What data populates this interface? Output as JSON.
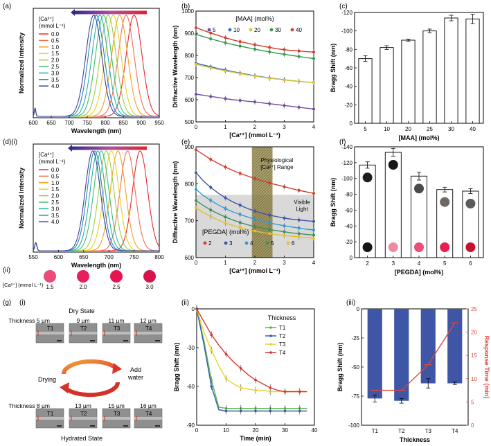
{
  "colors": {
    "ca_series": [
      "#e8282f",
      "#f06d55",
      "#f2a01f",
      "#e6d21f",
      "#9dcc3c",
      "#3fbf70",
      "#25b0a8",
      "#2a7fc4",
      "#3a3f96"
    ],
    "maa_series": [
      "#6e4e9e",
      "#2f6fb7",
      "#d9c43a",
      "#2f9c49",
      "#d63a2a"
    ],
    "pegda_series": [
      "#d63a2a",
      "#3d56a6",
      "#2b9bd6",
      "#3f8f5f",
      "#e2c12e"
    ],
    "thick_series": [
      "#55b74a",
      "#3a5aa8",
      "#ecd22a",
      "#d6342a"
    ],
    "bar_fill": "#3f56a6",
    "rt_line": "#e0463a",
    "band": "#8a7d3c",
    "visible": "#d9d9d9"
  },
  "panel_labels": {
    "a": "(a)",
    "b": "(b)",
    "c": "(c)",
    "d": "(d)(i)",
    "e": "(e)",
    "f": "(f)",
    "dii": "(ii)",
    "g": "(g)",
    "gi": "(i)",
    "gii": "(ii)",
    "giii": "(iii)"
  },
  "chart_data": [
    {
      "id": "a",
      "type": "line",
      "xlabel": "Wavelength (nm)",
      "ylabel": "Normalized Intensity",
      "xlim": [
        600,
        950
      ],
      "xticks": [
        "600",
        "650",
        "700",
        "750",
        "800",
        "850",
        "900",
        "950"
      ],
      "legend_title": [
        "[Ca²⁺]",
        "(mmol L⁻¹)"
      ],
      "series": [
        {
          "name": "0.0",
          "peak": 880
        },
        {
          "name": "0.5",
          "peak": 858
        },
        {
          "name": "1.0",
          "peak": 840
        },
        {
          "name": "1.5",
          "peak": 822
        },
        {
          "name": "2.0",
          "peak": 808
        },
        {
          "name": "2.5",
          "peak": 795
        },
        {
          "name": "3.0",
          "peak": 785
        },
        {
          "name": "3.5",
          "peak": 775
        },
        {
          "name": "4.0",
          "peak": 768
        }
      ]
    },
    {
      "id": "b",
      "type": "scatter",
      "xlabel": "[Ca²⁺] (mmol L⁻¹)",
      "ylabel": "Diffractive Wavelength (nm)",
      "xlim": [
        0,
        4
      ],
      "ylim": [
        500,
        1000
      ],
      "xticks": [
        "0",
        "1",
        "2",
        "3",
        "4"
      ],
      "yticks": [
        "500",
        "600",
        "700",
        "800",
        "900",
        "1000"
      ],
      "legend_title": "[MAA] (mol%)",
      "x": [
        0,
        0.25,
        0.5,
        0.75,
        1,
        1.25,
        1.5,
        1.75,
        2,
        2.25,
        2.5,
        2.75,
        3,
        3.25,
        3.5,
        3.75,
        4
      ],
      "series": [
        {
          "name": "5",
          "values": [
            625,
            620,
            615,
            610,
            605,
            600,
            597,
            593,
            590,
            586,
            582,
            578,
            574,
            570,
            566,
            562,
            558
          ]
        },
        {
          "name": "10",
          "values": [
            765,
            757,
            749,
            741,
            734,
            727,
            720,
            714,
            708,
            703,
            698,
            694,
            690,
            686,
            683,
            680,
            678
          ]
        },
        {
          "name": "20",
          "values": [
            760,
            752,
            744,
            737,
            730,
            724,
            718,
            712,
            707,
            702,
            697,
            693,
            689,
            686,
            683,
            680,
            678
          ]
        },
        {
          "name": "30",
          "values": [
            895,
            885,
            875,
            866,
            857,
            849,
            842,
            835,
            828,
            822,
            816,
            810,
            805,
            800,
            795,
            790,
            786
          ]
        },
        {
          "name": "40",
          "values": [
            925,
            913,
            901,
            890,
            880,
            870,
            862,
            855,
            848,
            842,
            836,
            830,
            826,
            822,
            820,
            817,
            815
          ]
        }
      ]
    },
    {
      "id": "c",
      "type": "bar",
      "xlabel": "[MAA] (mol%)",
      "ylabel": "Bragg Shift (nm)",
      "categories": [
        "5",
        "10",
        "20",
        "25",
        "30",
        "40"
      ],
      "values": [
        -70,
        -82,
        -90,
        -100,
        -114,
        -113
      ],
      "errors": [
        3,
        2,
        1,
        2,
        3,
        5
      ],
      "ylim": [
        0,
        -120
      ],
      "yticks": [
        "0",
        "-20",
        "-40",
        "-60",
        "-80",
        "-100",
        "-120"
      ]
    },
    {
      "id": "d",
      "type": "line",
      "xlabel": "Wavelength (nm)",
      "ylabel": "Normalized Intensity",
      "xlim": [
        550,
        800
      ],
      "xticks": [
        "550",
        "600",
        "650",
        "700",
        "750",
        "800"
      ],
      "legend_title": [
        "[Ca²⁺]",
        "(mmol L⁻¹)"
      ],
      "series": [
        {
          "name": "0.0",
          "peak": 762
        },
        {
          "name": "0.5",
          "peak": 737
        },
        {
          "name": "1.0",
          "peak": 718
        },
        {
          "name": "1.5",
          "peak": 705
        },
        {
          "name": "2.0",
          "peak": 695
        },
        {
          "name": "2.5",
          "peak": 685
        },
        {
          "name": "3.0",
          "peak": 678
        },
        {
          "name": "3.5",
          "peak": 672
        },
        {
          "name": "4.0",
          "peak": 668
        }
      ]
    },
    {
      "id": "e",
      "type": "scatter",
      "xlabel": "[Ca²⁺] (mmol L⁻¹)",
      "ylabel": "Diffractive Wavelength (nm)",
      "xlim": [
        0,
        4
      ],
      "ylim": [
        600,
        900
      ],
      "xticks": [
        "0",
        "1",
        "2",
        "3",
        "4"
      ],
      "yticks": [
        "600",
        "700",
        "800",
        "900"
      ],
      "legend_title": "[PEGDA] (mol%)",
      "annotations": {
        "band_label": [
          "Physiological",
          "[Ca²⁺] Range"
        ],
        "visible_label": [
          "Visible",
          "Light"
        ]
      },
      "band_x": [
        1.9,
        2.6
      ],
      "visible_y": [
        600,
        770
      ],
      "x": [
        0,
        0.25,
        0.5,
        0.75,
        1,
        1.25,
        1.5,
        1.75,
        2,
        2.25,
        2.5,
        2.75,
        3,
        3.25,
        3.5,
        3.75,
        4
      ],
      "series": [
        {
          "name": "2",
          "values": [
            892,
            879,
            866,
            855,
            845,
            836,
            828,
            821,
            814,
            808,
            802,
            797,
            792,
            787,
            782,
            778,
            774
          ]
        },
        {
          "name": "3",
          "values": [
            830,
            808,
            790,
            775,
            762,
            751,
            742,
            733,
            726,
            720,
            715,
            711,
            707,
            704,
            702,
            700,
            698
          ]
        },
        {
          "name": "4",
          "values": [
            785,
            768,
            755,
            743,
            733,
            724,
            717,
            710,
            704,
            699,
            694,
            690,
            686,
            683,
            680,
            677,
            675
          ]
        },
        {
          "name": "5",
          "values": [
            755,
            741,
            729,
            719,
            710,
            702,
            695,
            689,
            684,
            680,
            676,
            673,
            670,
            667,
            665,
            663,
            661
          ]
        },
        {
          "name": "6",
          "values": [
            735,
            722,
            711,
            702,
            694,
            687,
            681,
            676,
            672,
            668,
            665,
            662,
            660,
            658,
            656,
            654,
            652
          ]
        }
      ]
    },
    {
      "id": "f",
      "type": "bar",
      "xlabel": "[PEGDA] (mol%)",
      "ylabel": "Bragg Shift (nm)",
      "categories": [
        "2",
        "3",
        "4",
        "5",
        "6"
      ],
      "values": [
        -117,
        -133,
        -103,
        -86,
        -84
      ],
      "errors": [
        4,
        5,
        5,
        3,
        3
      ],
      "ylim": [
        0,
        -140
      ],
      "yticks": [
        "0",
        "-20",
        "-40",
        "-60",
        "-80",
        "-100",
        "-120",
        "-140"
      ],
      "dot_dark": [
        "#1f1f1f",
        "#161616",
        "#4a4a4a",
        "#6e6764",
        "#5e5a59"
      ],
      "dot_pink": [
        "#151515",
        "#f08aa3",
        "#ec4f7a",
        "#e8204e",
        "#c8102c"
      ]
    },
    {
      "id": "gii",
      "type": "line",
      "xlabel": "Time (min)",
      "ylabel": "Bragg Shift (nm)",
      "xlim": [
        0,
        40
      ],
      "ylim": [
        0,
        -90
      ],
      "xticks": [
        "0",
        "10",
        "20",
        "30",
        "40"
      ],
      "yticks": [
        "0",
        "-30",
        "-60",
        "-90"
      ],
      "legend_title": "Thickness",
      "x": [
        0,
        2.5,
        5,
        7.5,
        10,
        12.5,
        15,
        17.5,
        20,
        22.5,
        25,
        27.5,
        30,
        32.5,
        35,
        37.5
      ],
      "series": [
        {
          "name": "T1",
          "values": [
            0,
            -25,
            -55,
            -76,
            -77,
            -77,
            -77,
            -77,
            -77,
            -77,
            -77,
            -77,
            -77,
            -77,
            -77,
            -77
          ]
        },
        {
          "name": "T2",
          "values": [
            0,
            -28,
            -60,
            -78,
            -79,
            -79,
            -79,
            -79,
            -79,
            -79,
            -79,
            -79,
            -79,
            -79,
            -79,
            -79
          ]
        },
        {
          "name": "T3",
          "values": [
            0,
            -18,
            -32,
            -44,
            -54,
            -58,
            -61,
            -62,
            -63,
            -63,
            -64,
            -64,
            -64,
            -64,
            -64,
            -64
          ]
        },
        {
          "name": "T4",
          "values": [
            0,
            -10,
            -20,
            -28,
            -35,
            -41,
            -46,
            -51,
            -55,
            -58,
            -61,
            -63,
            -64,
            -64,
            -64,
            -64
          ]
        }
      ]
    },
    {
      "id": "giii",
      "type": "bar",
      "xlabel": "Thickness",
      "ylabel": "Bragg Shift (nm)",
      "y2label": "Response Time (min)",
      "categories": [
        "T1",
        "T2",
        "T3",
        "T4"
      ],
      "values": [
        -77,
        -79,
        -64,
        -64
      ],
      "errors": [
        3,
        2,
        4,
        1
      ],
      "response_time": [
        7.5,
        7.5,
        13,
        22
      ],
      "ylim": [
        0,
        -100
      ],
      "y2lim": [
        0,
        25
      ],
      "yticks": [
        "0",
        "-25",
        "-50",
        "-75",
        "-100"
      ],
      "y2ticks": [
        "0",
        "5",
        "10",
        "15",
        "20",
        "25"
      ]
    }
  ],
  "panel_dii": {
    "axis_label": "[Ca²⁺] (mmol L⁻¹)",
    "values": [
      "1.5",
      "2.0",
      "2.5",
      "3.0"
    ],
    "dot_colors": [
      "#ec4a78",
      "#e5205a",
      "#e61550",
      "#d8124a"
    ]
  },
  "panel_gi": {
    "dry_title": "Dry State",
    "hydrated_title": "Hydrated State",
    "drying_label": "Drying",
    "add_label": [
      "Add",
      "water"
    ],
    "thickness_label": "Thickness",
    "dry": [
      {
        "t": "5 µm",
        "tag": "T1"
      },
      {
        "t": "9 µm",
        "tag": "T2"
      },
      {
        "t": "11 µm",
        "tag": "T3"
      },
      {
        "t": "12 µm",
        "tag": "T4"
      }
    ],
    "hydrated": [
      {
        "t": "8 µm",
        "tag": "T1"
      },
      {
        "t": "13 µm",
        "tag": "T2"
      },
      {
        "t": "15 µm",
        "tag": "T3"
      },
      {
        "t": "16 µm",
        "tag": "T4"
      }
    ]
  }
}
